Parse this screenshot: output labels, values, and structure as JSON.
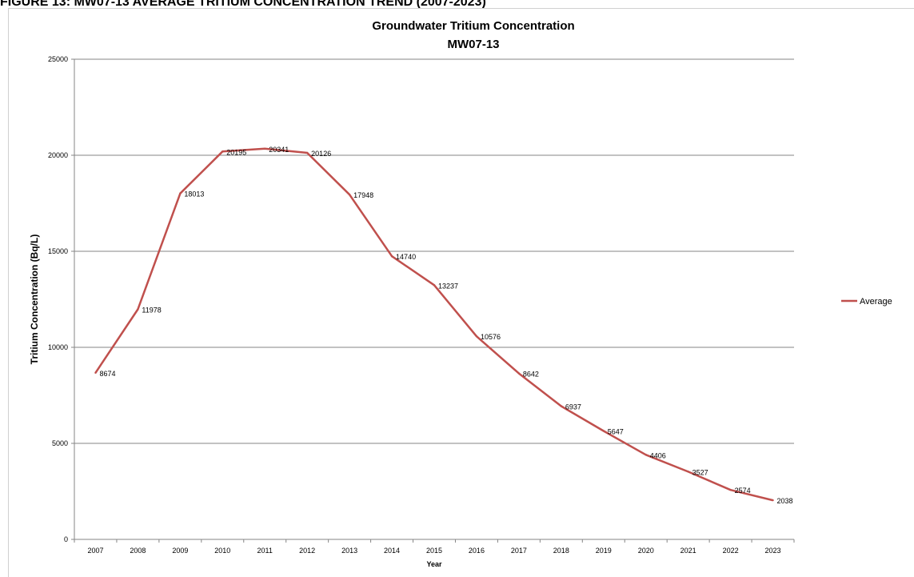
{
  "figure_caption": "FIGURE 13: MW07-13 AVERAGE TRITIUM CONCENTRATION TREND (2007-2023)",
  "chart_data": {
    "type": "line",
    "title": "Groundwater Tritium Concentration",
    "subtitle": "MW07-13",
    "xlabel": "Year",
    "ylabel": "Tritium Concentration (Bq/L)",
    "ylim": [
      0,
      25000
    ],
    "yticks": [
      "0",
      "5000",
      "10000",
      "15000",
      "20000",
      "25000"
    ],
    "grid": "horizontal",
    "legend_position": "right",
    "categories": [
      "2007",
      "2008",
      "2009",
      "2010",
      "2011",
      "2012",
      "2013",
      "2014",
      "2015",
      "2016",
      "2017",
      "2018",
      "2019",
      "2020",
      "2021",
      "2022",
      "2023"
    ],
    "series": [
      {
        "name": "Average",
        "color": "#c0504d",
        "values": [
          8674,
          11978,
          18013,
          20195,
          20341,
          20126,
          17948,
          14740,
          13237,
          10576,
          8642,
          6937,
          5647,
          4406,
          3527,
          2574,
          2038
        ],
        "labels": [
          "8674",
          "11978",
          "18013",
          "20195",
          "20341",
          "20126",
          "17948",
          "14740",
          "13237",
          "10576",
          "8642",
          "6937",
          "5647",
          "4406",
          "3527",
          "2574",
          "2038"
        ]
      }
    ]
  }
}
